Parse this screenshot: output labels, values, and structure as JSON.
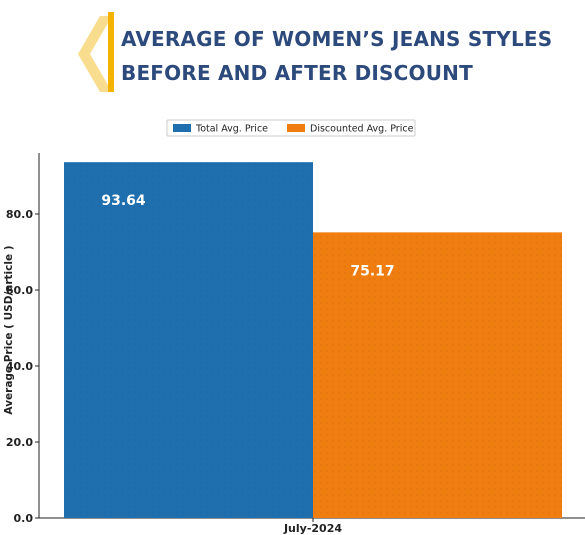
{
  "title_lines": [
    "AVERAGE OF WOMEN’S JEANS STYLES",
    "BEFORE AND AFTER DISCOUNT"
  ],
  "colors": {
    "title": "#2d4a7c",
    "accent_chevron": "#f5b301",
    "total": "#1f6faf",
    "discounted": "#f07d10"
  },
  "chart_data": {
    "type": "bar",
    "categories": [
      "July-2024"
    ],
    "series": [
      {
        "name": "Total Avg. Price",
        "values": [
          93.64
        ]
      },
      {
        "name": "Discounted Avg. Price",
        "values": [
          75.17
        ]
      }
    ],
    "data_labels": [
      "93.64",
      "75.17"
    ],
    "xlabel": "",
    "ylabel": "Average Price ( USD/article )",
    "yticks": [
      "0.0",
      "20.0",
      "40.0",
      "60.0",
      "80.0"
    ],
    "ytick_values": [
      0,
      20,
      40,
      60,
      80
    ],
    "ylim": [
      0,
      100
    ],
    "legend_position": "top-center",
    "grid": false
  }
}
